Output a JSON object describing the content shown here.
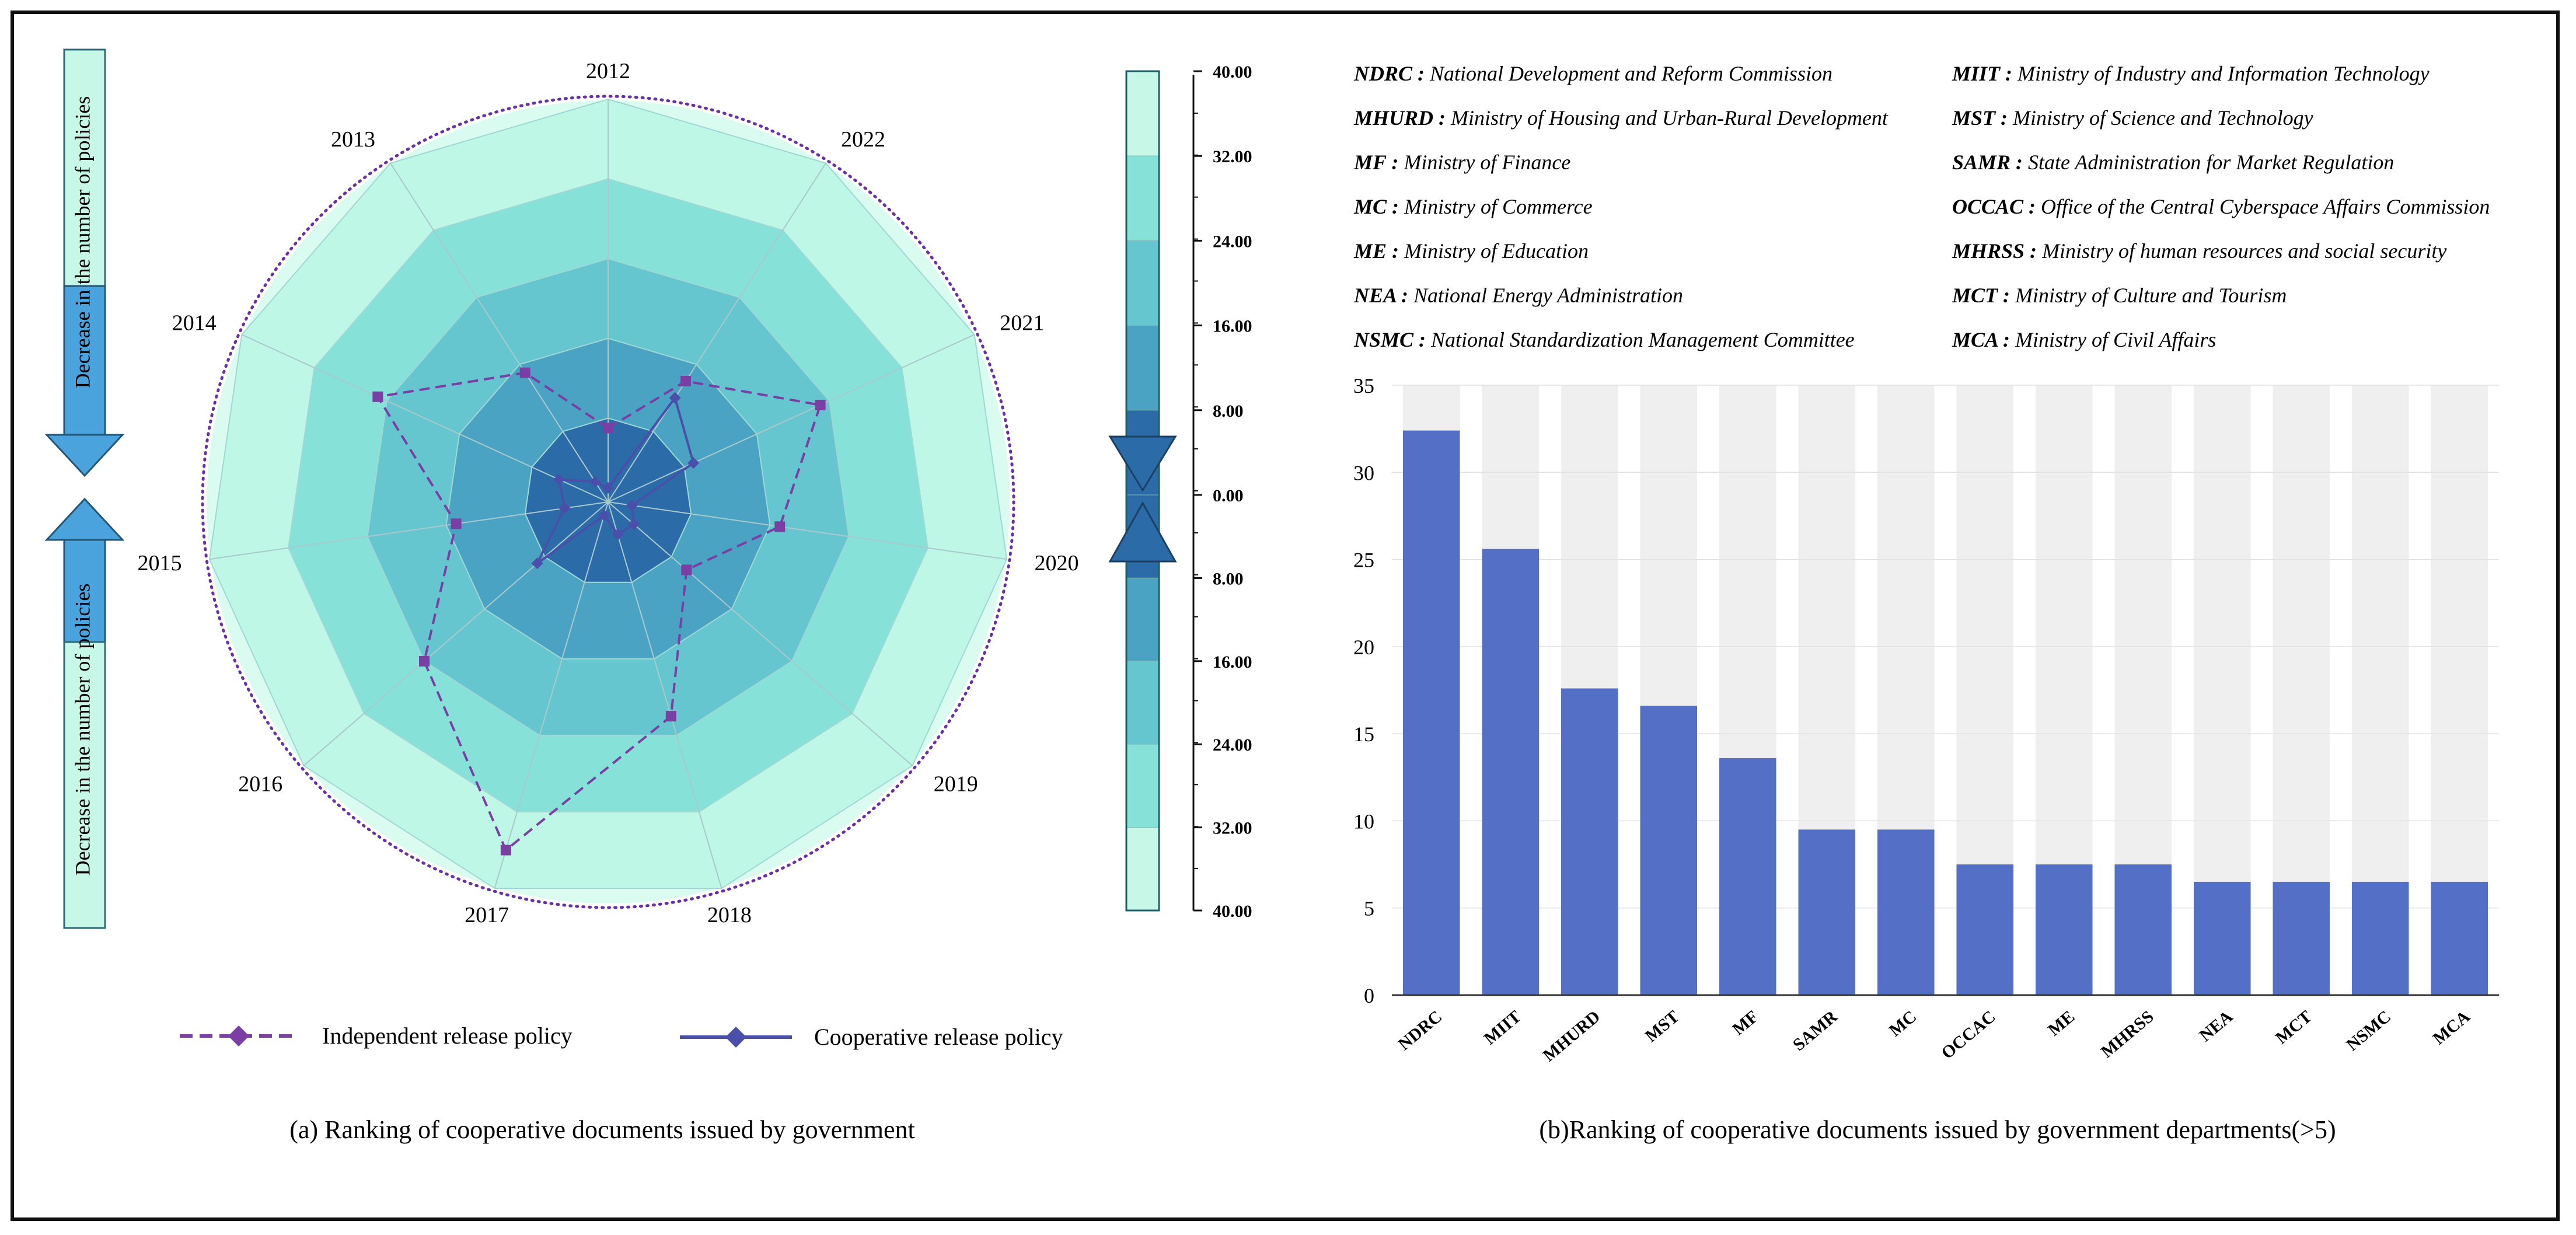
{
  "colors": {
    "ring1": "#2b6ca8",
    "ring2": "#4aa3c2",
    "ring3": "#66c6cf",
    "ring4": "#86e2d9",
    "ring5": "#bff7e7",
    "independent_line": "#7a3ea5",
    "cooperative_line": "#4a4faa",
    "bar_fill": "#5470c6",
    "bar_bg": "#efefef",
    "arrow_blue": "#4aa3dc",
    "scale_box": "#c6f7e7"
  },
  "left_panel": {
    "caption": "(a) Ranking of cooperative documents issued by government",
    "side_label_top": "Decrease in the number of policies",
    "side_label_bottom": "Decrease in the number of policies",
    "legend": {
      "independent": "Independent release policy",
      "cooperative": "Cooperative release policy"
    },
    "scale_ticks_top": [
      "40.00",
      "32.00",
      "24.00",
      "16.00",
      "8.00",
      "0.00"
    ],
    "scale_ticks_bottom": [
      "8.00",
      "16.00",
      "24.00",
      "32.00",
      "40.00"
    ]
  },
  "right_panel": {
    "caption": "(b)Ranking of cooperative documents issued by government departments(>5)",
    "abbreviations": [
      {
        "abbr": "NDRC :",
        "full": "National Development and Reform Commission"
      },
      {
        "abbr": "MHURD :",
        "full": "Ministry of Housing and Urban-Rural Development"
      },
      {
        "abbr": "MF :",
        "full": "Ministry of Finance"
      },
      {
        "abbr": "MC :",
        "full": "Ministry of Commerce"
      },
      {
        "abbr": "ME :",
        "full": "Ministry of Education"
      },
      {
        "abbr": "NEA :",
        "full": "National Energy Administration"
      },
      {
        "abbr": "NSMC :",
        "full": "National Standardization Management Committee"
      },
      {
        "abbr": "MIIT :",
        "full": "Ministry of Industry and Information Technology"
      },
      {
        "abbr": "MST :",
        "full": "Ministry of Science and Technology"
      },
      {
        "abbr": "SAMR :",
        "full": "State Administration for Market Regulation"
      },
      {
        "abbr": "OCCAC :",
        "full": "Office of the Central Cyberspace Affairs Commission"
      },
      {
        "abbr": "MHRSS :",
        "full": "Ministry of human resources and social security"
      },
      {
        "abbr": "MCT :",
        "full": "Ministry of Culture and Tourism"
      },
      {
        "abbr": "MCA :",
        "full": "Ministry of Civil Affairs"
      }
    ]
  },
  "chart_data": [
    {
      "type": "radar",
      "title": "(a) Ranking of cooperative documents issued by government",
      "categories": [
        "2012",
        "2022",
        "2021",
        "2020",
        "2019",
        "2018",
        "2017",
        "2016",
        "2015",
        "2014",
        "2013"
      ],
      "rlim": [
        0,
        40
      ],
      "ring_levels": [
        8,
        16,
        24,
        32,
        40
      ],
      "series": [
        {
          "name": "Independent release policy",
          "style": "dashed",
          "values": [
            7,
            14,
            23,
            17,
            10,
            22,
            36,
            24,
            15,
            25,
            15
          ]
        },
        {
          "name": "Cooperative release policy",
          "style": "solid",
          "values": [
            1,
            12,
            9,
            2,
            3,
            3,
            1,
            9,
            4,
            5,
            2
          ]
        }
      ]
    },
    {
      "type": "bar",
      "title": "(b)Ranking of cooperative documents issued by government departments(>5)",
      "categories": [
        "NDRC",
        "MIIT",
        "MHURD",
        "MST",
        "MF",
        "SAMR",
        "MC",
        "OCCAC",
        "ME",
        "MHRSS",
        "NEA",
        "MCT",
        "NSMC",
        "MCA"
      ],
      "values": [
        32.4,
        25.6,
        17.6,
        16.6,
        13.6,
        9.5,
        9.5,
        7.5,
        7.5,
        7.5,
        6.5,
        6.5,
        6.5,
        6.5
      ],
      "ylim": [
        0,
        35
      ],
      "yticks": [
        0,
        5,
        10,
        15,
        20,
        25,
        30,
        35
      ],
      "xlabel": "",
      "ylabel": ""
    }
  ]
}
